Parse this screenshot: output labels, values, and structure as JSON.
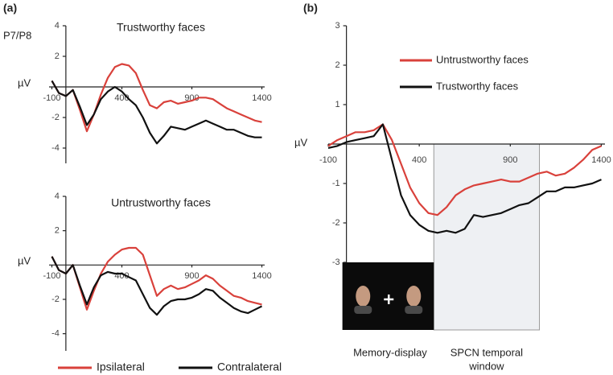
{
  "panel_labels": [
    "(a)",
    "(b)"
  ],
  "chart_data": [
    {
      "type": "line",
      "title": "Trustworthy faces",
      "annotation": "P7/P8",
      "ylabel": "µV",
      "x": [
        -100,
        -50,
        0,
        50,
        100,
        150,
        200,
        250,
        300,
        350,
        400,
        450,
        500,
        550,
        600,
        650,
        700,
        750,
        800,
        850,
        900,
        950,
        1000,
        1050,
        1100,
        1150,
        1200,
        1250,
        1300,
        1350,
        1400
      ],
      "series": [
        {
          "name": "Ipsilateral",
          "color": "#d9413b",
          "values": [
            0.4,
            -0.4,
            -0.6,
            -0.2,
            -1.5,
            -2.9,
            -1.8,
            -0.5,
            0.6,
            1.3,
            1.5,
            1.4,
            0.9,
            -0.2,
            -1.2,
            -1.4,
            -1,
            -0.9,
            -1.1,
            -1,
            -0.9,
            -0.7,
            -0.7,
            -0.8,
            -1.1,
            -1.4,
            -1.6,
            -1.8,
            -2,
            -2.2,
            -2.3
          ]
        },
        {
          "name": "Contralateral",
          "color": "#111111",
          "values": [
            0.4,
            -0.4,
            -0.6,
            -0.2,
            -1.3,
            -2.5,
            -1.8,
            -0.8,
            -0.3,
            0,
            -0.3,
            -0.8,
            -1.2,
            -2,
            -3,
            -3.7,
            -3.2,
            -2.6,
            -2.7,
            -2.8,
            -2.6,
            -2.4,
            -2.2,
            -2.4,
            -2.6,
            -2.8,
            -2.8,
            -3,
            -3.2,
            -3.3,
            -3.3
          ]
        }
      ],
      "xlim": [
        -120,
        1420
      ],
      "ylim": [
        -5,
        4
      ],
      "xticks": [
        -100,
        400,
        900,
        1400
      ],
      "yticks": [
        -4,
        -2,
        2,
        4
      ]
    },
    {
      "type": "line",
      "title": "Untrustworthy faces",
      "ylabel": "µV",
      "legend": "below",
      "x": [
        -100,
        -50,
        0,
        50,
        100,
        150,
        200,
        250,
        300,
        350,
        400,
        450,
        500,
        550,
        600,
        650,
        700,
        750,
        800,
        850,
        900,
        950,
        1000,
        1050,
        1100,
        1150,
        1200,
        1250,
        1300,
        1350,
        1400
      ],
      "series": [
        {
          "name": "Ipsilateral",
          "color": "#d9413b",
          "values": [
            0.5,
            -0.3,
            -0.5,
            0,
            -1.3,
            -2.6,
            -1.5,
            -0.5,
            0.2,
            0.6,
            0.9,
            1,
            1,
            0.6,
            -0.6,
            -1.8,
            -1.4,
            -1.2,
            -1.4,
            -1.3,
            -1.1,
            -0.9,
            -0.6,
            -0.8,
            -1.2,
            -1.5,
            -1.8,
            -1.9,
            -2.1,
            -2.2,
            -2.3
          ]
        },
        {
          "name": "Contralateral",
          "color": "#111111",
          "values": [
            0.5,
            -0.3,
            -0.5,
            0,
            -1.2,
            -2.3,
            -1.3,
            -0.6,
            -0.4,
            -0.5,
            -0.5,
            -0.7,
            -0.9,
            -1.7,
            -2.5,
            -2.9,
            -2.4,
            -2.1,
            -2,
            -2,
            -1.9,
            -1.7,
            -1.4,
            -1.5,
            -1.9,
            -2.2,
            -2.5,
            -2.7,
            -2.8,
            -2.6,
            -2.4
          ]
        }
      ],
      "xlim": [
        -120,
        1420
      ],
      "ylim": [
        -5,
        4
      ],
      "xticks": [
        -100,
        400,
        900,
        1400
      ],
      "yticks": [
        -4,
        -2,
        2,
        4
      ]
    },
    {
      "type": "line",
      "ylabel": "µV",
      "legend": "upper left",
      "x": [
        -100,
        -50,
        0,
        50,
        100,
        150,
        200,
        250,
        300,
        350,
        400,
        450,
        500,
        550,
        600,
        650,
        700,
        750,
        800,
        850,
        900,
        950,
        1000,
        1050,
        1100,
        1150,
        1200,
        1250,
        1300,
        1350,
        1400
      ],
      "series": [
        {
          "name": "Untrustworthy faces",
          "color": "#d9413b",
          "values": [
            -0.05,
            0.1,
            0.2,
            0.3,
            0.3,
            0.35,
            0.5,
            0.1,
            -0.5,
            -1.1,
            -1.5,
            -1.75,
            -1.8,
            -1.6,
            -1.3,
            -1.15,
            -1.05,
            -1,
            -0.95,
            -0.9,
            -0.95,
            -0.95,
            -0.85,
            -0.75,
            -0.7,
            -0.8,
            -0.75,
            -0.6,
            -0.4,
            -0.15,
            -0.05
          ]
        },
        {
          "name": "Trustworthy faces",
          "color": "#111111",
          "values": [
            -0.1,
            -0.05,
            0.05,
            0.1,
            0.15,
            0.2,
            0.5,
            -0.4,
            -1.3,
            -1.8,
            -2.05,
            -2.2,
            -2.25,
            -2.2,
            -2.25,
            -2.15,
            -1.8,
            -1.85,
            -1.8,
            -1.75,
            -1.65,
            -1.55,
            -1.5,
            -1.35,
            -1.2,
            -1.2,
            -1.1,
            -1.1,
            -1.05,
            -1,
            -0.9
          ]
        }
      ],
      "xlim": [
        -100,
        1420
      ],
      "ylim": [
        -3,
        3
      ],
      "xticks": [
        -100,
        400,
        900,
        1400
      ],
      "yticks": [
        -3,
        -2,
        -1,
        1,
        2,
        3
      ],
      "shaded_region": [
        480,
        1060
      ],
      "annotations": [
        "Memory-display",
        [
          "SPCN temporal",
          "window"
        ]
      ]
    }
  ]
}
